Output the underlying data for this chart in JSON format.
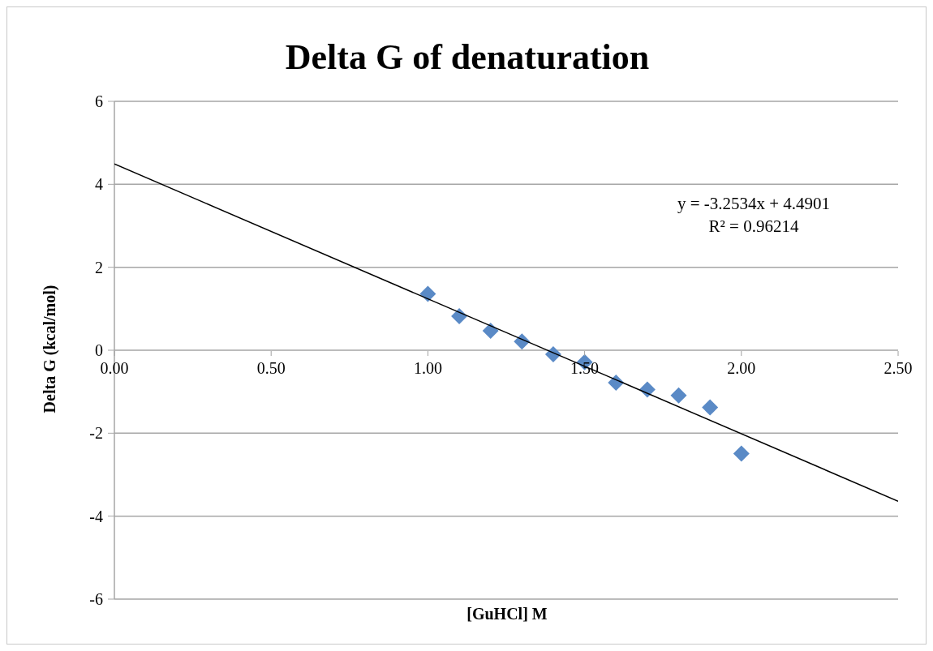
{
  "chart_data": {
    "type": "scatter",
    "title": "Delta G of denaturation",
    "xlabel": "[GuHCl] M",
    "ylabel": "Delta G (kcal/mol)",
    "xlim": [
      0,
      2.5
    ],
    "xticks": [
      {
        "value": 0,
        "label": "0.00"
      },
      {
        "value": 0.5,
        "label": "0.50"
      },
      {
        "value": 1,
        "label": "1.00"
      },
      {
        "value": 1.5,
        "label": "1.50"
      },
      {
        "value": 2,
        "label": "2.00"
      },
      {
        "value": 2.5,
        "label": "2.50"
      }
    ],
    "ylim": [
      -6,
      6
    ],
    "yticks": [
      -6,
      -4,
      -2,
      0,
      2,
      4,
      6
    ],
    "grid": "y",
    "marker": "diamond",
    "series": [
      {
        "type": "scatter",
        "color": "#5a8ac6",
        "x": [
          1.0,
          1.1,
          1.2,
          1.3,
          1.4,
          1.5,
          1.6,
          1.7,
          1.8,
          1.9,
          2.0
        ],
        "values": [
          1.36,
          0.82,
          0.47,
          0.21,
          -0.1,
          -0.29,
          -0.78,
          -0.95,
          -1.09,
          -1.38,
          -2.49
        ]
      },
      {
        "type": "line",
        "marker": "none",
        "color": "#000000",
        "x": [
          0,
          2.5
        ],
        "values": [
          4.49,
          -3.64
        ]
      }
    ],
    "annotations": [
      {
        "text": "y = -3.2534x + 4.4901"
      },
      {
        "text": "R² = 0.96214"
      }
    ]
  }
}
